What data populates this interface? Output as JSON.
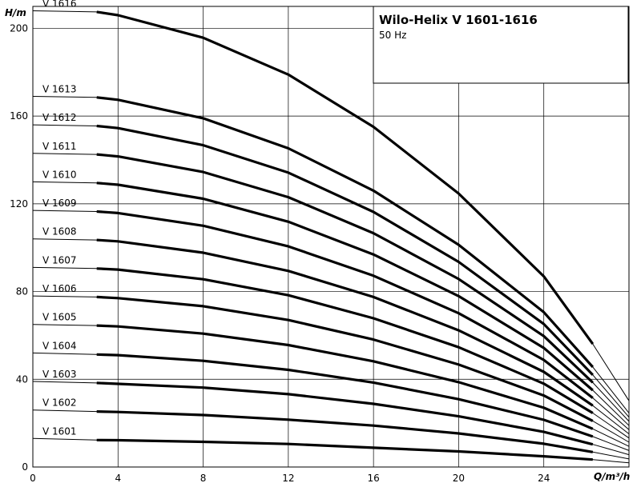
{
  "chart_data": {
    "type": "line",
    "title": "Wilo-Helix V 1601-1616",
    "subtitle": "50 Hz",
    "xlabel": "Q/m³/h",
    "ylabel": "H/m",
    "xlim": [
      0,
      28
    ],
    "ylim": [
      0,
      210
    ],
    "x_ticks": [
      0,
      4,
      8,
      12,
      16,
      20,
      24
    ],
    "y_ticks": [
      0,
      40,
      80,
      120,
      160,
      200
    ],
    "x_gridlines": [
      0,
      4,
      8,
      12,
      16,
      20,
      24,
      28
    ],
    "y_gridlines": [
      0,
      40,
      80,
      120,
      160,
      200
    ],
    "grid": true,
    "legend": "none",
    "x": [
      0,
      3,
      4,
      8,
      12,
      16,
      20,
      24,
      26.3,
      28
    ],
    "series": [
      {
        "name": "V 1601",
        "values": [
          13,
          12.3,
          12.2,
          11.5,
          10.5,
          8.8,
          7.1,
          4.9,
          3.4,
          1.9
        ]
      },
      {
        "name": "V 1602",
        "values": [
          26,
          25.3,
          25.1,
          23.7,
          21.6,
          18.9,
          15.3,
          10.6,
          6.8,
          3.7
        ]
      },
      {
        "name": "V 1603",
        "values": [
          39,
          38.3,
          37.9,
          36.2,
          33.2,
          28.8,
          23.1,
          16.0,
          10.3,
          5.6
        ]
      },
      {
        "name": "V 1604",
        "values": [
          52,
          51.3,
          51.0,
          48.4,
          44.3,
          38.5,
          30.9,
          21.5,
          13.9,
          7.5
        ]
      },
      {
        "name": "V 1605",
        "values": [
          65,
          64.5,
          64.1,
          60.8,
          55.6,
          48.2,
          38.7,
          27.0,
          17.4,
          9.4
        ]
      },
      {
        "name": "V 1606",
        "values": [
          78,
          77.5,
          77.0,
          73.3,
          67.0,
          58.1,
          46.7,
          32.6,
          21.0,
          11.3
        ]
      },
      {
        "name": "V 1607",
        "values": [
          91,
          90.5,
          90.0,
          85.6,
          78.3,
          67.8,
          54.6,
          38.0,
          24.6,
          13.2
        ]
      },
      {
        "name": "V 1608",
        "values": [
          104,
          103.5,
          102.9,
          97.7,
          89.4,
          77.5,
          62.3,
          43.4,
          28.0,
          15.1
        ]
      },
      {
        "name": "V 1609",
        "values": [
          117,
          116.5,
          115.8,
          110.0,
          100.6,
          87.2,
          70.1,
          48.8,
          31.5,
          17.0
        ]
      },
      {
        "name": "V 1610",
        "values": [
          130,
          129.5,
          128.7,
          122.3,
          111.8,
          96.9,
          77.9,
          54.3,
          35.0,
          18.9
        ]
      },
      {
        "name": "V 1611",
        "values": [
          143,
          142.5,
          141.6,
          134.5,
          123.0,
          106.6,
          85.7,
          59.7,
          38.5,
          20.8
        ]
      },
      {
        "name": "V 1612",
        "values": [
          156,
          155.5,
          154.5,
          146.7,
          134.2,
          116.3,
          93.5,
          65.2,
          42.0,
          22.7
        ]
      },
      {
        "name": "V 1613",
        "values": [
          169,
          168.5,
          167.4,
          159.0,
          145.3,
          126.0,
          101.3,
          70.6,
          45.6,
          24.6
        ]
      },
      {
        "name": "V 1616",
        "values": [
          208,
          207.5,
          206.0,
          195.7,
          178.9,
          155.1,
          124.7,
          86.9,
          56.1,
          30.2
        ]
      }
    ],
    "highlight_range": [
      3,
      26.3
    ]
  }
}
